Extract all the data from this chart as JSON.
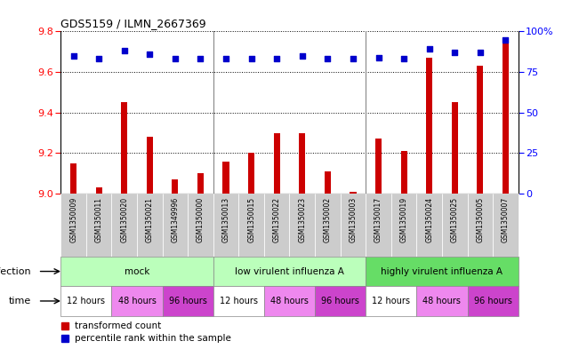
{
  "title": "GDS5159 / ILMN_2667369",
  "samples": [
    "GSM1350009",
    "GSM1350011",
    "GSM1350020",
    "GSM1350021",
    "GSM1349996",
    "GSM1350000",
    "GSM1350013",
    "GSM1350015",
    "GSM1350022",
    "GSM1350023",
    "GSM1350002",
    "GSM1350003",
    "GSM1350017",
    "GSM1350019",
    "GSM1350024",
    "GSM1350025",
    "GSM1350005",
    "GSM1350007"
  ],
  "transformed_count": [
    9.15,
    9.03,
    9.45,
    9.28,
    9.07,
    9.1,
    9.16,
    9.2,
    9.3,
    9.3,
    9.11,
    9.01,
    9.27,
    9.21,
    9.67,
    9.45,
    9.63,
    9.75
  ],
  "percentile_rank": [
    85,
    83,
    88,
    86,
    83,
    83,
    83,
    83,
    83,
    85,
    83,
    83,
    84,
    83,
    89,
    87,
    87,
    95
  ],
  "bar_color": "#cc0000",
  "dot_color": "#0000cc",
  "ylim_left": [
    9.0,
    9.8
  ],
  "ylim_right": [
    0,
    100
  ],
  "yticks_left": [
    9.0,
    9.2,
    9.4,
    9.6,
    9.8
  ],
  "yticks_right": [
    0,
    25,
    50,
    75,
    100
  ],
  "infection_groups": [
    {
      "label": "mock",
      "start": 0,
      "end": 6,
      "color": "#bbffbb"
    },
    {
      "label": "low virulent influenza A",
      "start": 6,
      "end": 12,
      "color": "#bbffbb"
    },
    {
      "label": "highly virulent influenza A",
      "start": 12,
      "end": 18,
      "color": "#66dd66"
    }
  ],
  "time_colors": {
    "12 hours": "#ffffff",
    "48 hours": "#ee88ee",
    "96 hours": "#cc44cc"
  },
  "time_groups": [
    {
      "label": "12 hours",
      "start": 0,
      "end": 2
    },
    {
      "label": "48 hours",
      "start": 2,
      "end": 4
    },
    {
      "label": "96 hours",
      "start": 4,
      "end": 6
    },
    {
      "label": "12 hours",
      "start": 6,
      "end": 8
    },
    {
      "label": "48 hours",
      "start": 8,
      "end": 10
    },
    {
      "label": "96 hours",
      "start": 10,
      "end": 12
    },
    {
      "label": "12 hours",
      "start": 12,
      "end": 14
    },
    {
      "label": "48 hours",
      "start": 14,
      "end": 16
    },
    {
      "label": "96 hours",
      "start": 16,
      "end": 18
    }
  ],
  "xlabel_bg_color": "#cccccc",
  "infection_label": "infection",
  "time_label": "time",
  "legend_bar_label": "transformed count",
  "legend_dot_label": "percentile rank within the sample"
}
